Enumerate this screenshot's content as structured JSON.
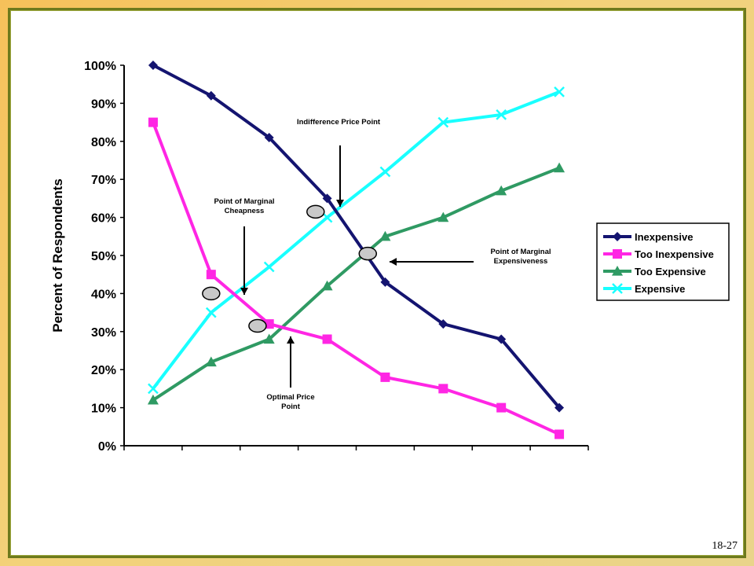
{
  "page": {
    "number": "18-27"
  },
  "colors": {
    "inexpensive": "#141470",
    "too_inexpensive": "#ff26e4",
    "too_expensive": "#2f9a63",
    "expensive": "#19ffff",
    "marker_fill": "#c9c9c9"
  },
  "chart_data": {
    "type": "line",
    "title": "",
    "xlabel": "",
    "ylabel": "Percent of Respondents",
    "ylim": [
      0,
      100
    ],
    "yticks": [
      "0%",
      "10%",
      "20%",
      "30%",
      "40%",
      "50%",
      "60%",
      "70%",
      "80%",
      "90%",
      "100%"
    ],
    "grid": false,
    "legend": "right",
    "x_categories": 8,
    "series": [
      {
        "name": "Inexpensive",
        "marker": "diamond",
        "color_key": "inexpensive",
        "x": [
          0.5,
          1.5,
          2.5,
          3.5,
          4.5,
          5.5,
          6.5,
          7.5
        ],
        "values": [
          100,
          92,
          81,
          65,
          43,
          32,
          28,
          10
        ]
      },
      {
        "name": "Too Inexpensive",
        "marker": "square",
        "color_key": "too_inexpensive",
        "x": [
          0.5,
          1.5,
          2.5,
          3.5,
          4.5,
          5.5,
          6.5,
          7.5
        ],
        "values": [
          85,
          45,
          32,
          28,
          18,
          15,
          10,
          3
        ]
      },
      {
        "name": "Too Expensive",
        "marker": "triangle",
        "color_key": "too_expensive",
        "x": [
          0.5,
          1.5,
          2.5,
          3.5,
          4.5,
          5.5,
          6.5,
          7.5
        ],
        "values": [
          12,
          22,
          28,
          42,
          55,
          60,
          67,
          73
        ]
      },
      {
        "name": "Expensive",
        "marker": "x",
        "color_key": "expensive",
        "x": [
          0.5,
          1.5,
          2.5,
          3.5,
          4.5,
          5.5,
          6.5,
          7.5
        ],
        "values": [
          15,
          35,
          47,
          60,
          72,
          85,
          87,
          93
        ]
      }
    ],
    "annotations": [
      {
        "name": "point-of-marginal-cheapness",
        "lines": [
          "Point of Marginal",
          "Cheapness"
        ],
        "point": [
          1.5,
          40
        ],
        "arrow": "down"
      },
      {
        "name": "optimal-price-point",
        "lines": [
          "Optimal Price",
          "Point"
        ],
        "point": [
          2.3,
          31.5
        ],
        "arrow": "up"
      },
      {
        "name": "indifference-price-point",
        "lines": [
          "Indifference Price Point"
        ],
        "point": [
          3.3,
          61.5
        ],
        "arrow": "down"
      },
      {
        "name": "point-of-marginal-expensiveness",
        "lines": [
          "Point of Marginal",
          "Expensiveness"
        ],
        "point": [
          4.2,
          50.5
        ],
        "arrow": "left"
      }
    ]
  }
}
